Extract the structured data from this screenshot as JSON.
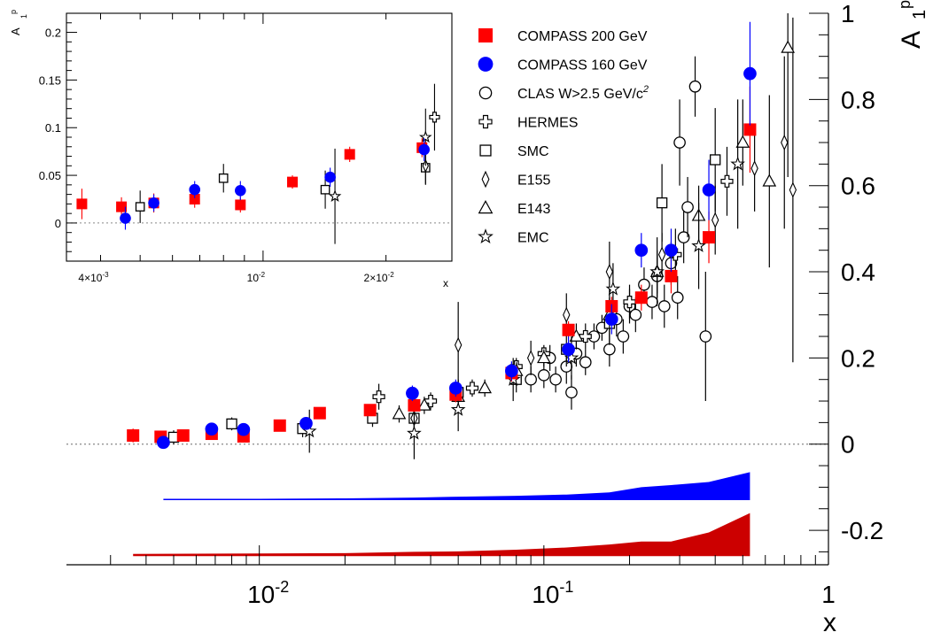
{
  "colors": {
    "compass200": "#ff0000",
    "compass160": "#0000ff",
    "band_compass160": "#0000ff",
    "band_compass200": "#cc0000",
    "other": "#000000",
    "zero_line": "#888888"
  },
  "chart_data": [
    {
      "type": "scatter",
      "scale": {
        "x": "log",
        "y": "linear"
      },
      "xlabel": "x",
      "ylabel": "A",
      "ylabel_sub": "1",
      "ylabel_sup": "p",
      "xlim": [
        0.0021,
        1.0
      ],
      "ylim": [
        -0.28,
        1.0
      ],
      "x_tick_labels": [
        {
          "value": 0.01,
          "base": "10",
          "exp": "-2"
        },
        {
          "value": 0.1,
          "base": "10",
          "exp": "-1"
        },
        {
          "value": 1,
          "base": "1",
          "exp": ""
        }
      ],
      "y_tick_labels": [
        "-0.2",
        "0",
        "0.2",
        "0.4",
        "0.6",
        "0.8",
        "1"
      ],
      "y_tick_values": [
        -0.2,
        0,
        0.2,
        0.4,
        0.6,
        0.8,
        1
      ],
      "zero_line": true,
      "legend": {
        "placement": "top-right",
        "entries": [
          {
            "series": "COMPASS 200 GeV",
            "label": "COMPASS 200 GeV",
            "symbol": "square-filled",
            "color": "#ff0000"
          },
          {
            "series": "COMPASS 160 GeV",
            "label": "COMPASS 160 GeV",
            "symbol": "circle-filled",
            "color": "#0000ff"
          },
          {
            "series": "CLAS W>2.5 GeV/c2",
            "label": "CLAS W>2.5 GeV/c",
            "label_sup": "2",
            "symbol": "circle-open",
            "color": "#000000"
          },
          {
            "series": "HERMES",
            "label": "HERMES",
            "symbol": "cross-open",
            "color": "#000000"
          },
          {
            "series": "SMC",
            "label": "SMC",
            "symbol": "square-open",
            "color": "#000000"
          },
          {
            "series": "E155",
            "label": "E155",
            "symbol": "diamond-open",
            "color": "#000000"
          },
          {
            "series": "E143",
            "label": "E143",
            "symbol": "triangle-open",
            "color": "#000000"
          },
          {
            "series": "EMC",
            "label": "EMC",
            "symbol": "star-open",
            "color": "#000000"
          }
        ]
      },
      "series": [
        {
          "name": "COMPASS 200 GeV",
          "points": [
            {
              "x": 0.0036,
              "y": 0.02,
              "err": 0.016
            },
            {
              "x": 0.0045,
              "y": 0.017,
              "err": 0.01
            },
            {
              "x": 0.0054,
              "y": 0.02,
              "err": 0.01
            },
            {
              "x": 0.0068,
              "y": 0.024,
              "err": 0.009
            },
            {
              "x": 0.0088,
              "y": 0.018,
              "err": 0.008
            },
            {
              "x": 0.0118,
              "y": 0.043,
              "err": 0.007
            },
            {
              "x": 0.0163,
              "y": 0.072,
              "err": 0.008
            },
            {
              "x": 0.0245,
              "y": 0.079,
              "err": 0.01
            },
            {
              "x": 0.035,
              "y": 0.09,
              "err": 0.015
            },
            {
              "x": 0.049,
              "y": 0.115,
              "err": 0.018
            },
            {
              "x": 0.077,
              "y": 0.165,
              "err": 0.02
            },
            {
              "x": 0.122,
              "y": 0.265,
              "err": 0.02
            },
            {
              "x": 0.173,
              "y": 0.32,
              "err": 0.022
            },
            {
              "x": 0.22,
              "y": 0.34,
              "err": 0.03
            },
            {
              "x": 0.28,
              "y": 0.39,
              "err": 0.04
            },
            {
              "x": 0.38,
              "y": 0.48,
              "err": 0.06
            },
            {
              "x": 0.53,
              "y": 0.73,
              "err": 0.1
            }
          ]
        },
        {
          "name": "COMPASS 160 GeV",
          "points": [
            {
              "x": 0.0046,
              "y": 0.004,
              "err": 0.012
            },
            {
              "x": 0.0068,
              "y": 0.035,
              "err": 0.009
            },
            {
              "x": 0.0088,
              "y": 0.034,
              "err": 0.01
            },
            {
              "x": 0.0146,
              "y": 0.048,
              "err": 0.01
            },
            {
              "x": 0.0345,
              "y": 0.118,
              "err": 0.018
            },
            {
              "x": 0.049,
              "y": 0.13,
              "err": 0.02
            },
            {
              "x": 0.077,
              "y": 0.17,
              "err": 0.022
            },
            {
              "x": 0.122,
              "y": 0.22,
              "err": 0.03
            },
            {
              "x": 0.173,
              "y": 0.29,
              "err": 0.035
            },
            {
              "x": 0.22,
              "y": 0.45,
              "err": 0.04
            },
            {
              "x": 0.28,
              "y": 0.45,
              "err": 0.05
            },
            {
              "x": 0.38,
              "y": 0.59,
              "err": 0.07
            },
            {
              "x": 0.53,
              "y": 0.86,
              "err": 0.12
            }
          ]
        },
        {
          "name": "CLAS W>2.5 GeV/c2",
          "points": [
            {
              "x": 0.09,
              "y": 0.15,
              "err": 0.03
            },
            {
              "x": 0.1,
              "y": 0.16,
              "err": 0.03
            },
            {
              "x": 0.105,
              "y": 0.2,
              "err": 0.03
            },
            {
              "x": 0.11,
              "y": 0.15,
              "err": 0.03
            },
            {
              "x": 0.12,
              "y": 0.18,
              "err": 0.04
            },
            {
              "x": 0.125,
              "y": 0.12,
              "err": 0.04
            },
            {
              "x": 0.13,
              "y": 0.21,
              "err": 0.03
            },
            {
              "x": 0.14,
              "y": 0.19,
              "err": 0.03
            },
            {
              "x": 0.15,
              "y": 0.25,
              "err": 0.03
            },
            {
              "x": 0.16,
              "y": 0.27,
              "err": 0.03
            },
            {
              "x": 0.17,
              "y": 0.22,
              "err": 0.04
            },
            {
              "x": 0.18,
              "y": 0.29,
              "err": 0.04
            },
            {
              "x": 0.19,
              "y": 0.25,
              "err": 0.04
            },
            {
              "x": 0.2,
              "y": 0.32,
              "err": 0.04
            },
            {
              "x": 0.21,
              "y": 0.3,
              "err": 0.04
            },
            {
              "x": 0.225,
              "y": 0.37,
              "err": 0.04
            },
            {
              "x": 0.24,
              "y": 0.33,
              "err": 0.04
            },
            {
              "x": 0.25,
              "y": 0.39,
              "err": 0.05
            },
            {
              "x": 0.265,
              "y": 0.32,
              "err": 0.05
            },
            {
              "x": 0.28,
              "y": 0.42,
              "err": 0.05
            },
            {
              "x": 0.295,
              "y": 0.34,
              "err": 0.05
            },
            {
              "x": 0.31,
              "y": 0.48,
              "err": 0.06
            },
            {
              "x": 0.32,
              "y": 0.55,
              "err": 0.07
            },
            {
              "x": 0.3,
              "y": 0.7,
              "err": 0.1
            },
            {
              "x": 0.34,
              "y": 0.83,
              "err": 0.07
            },
            {
              "x": 0.37,
              "y": 0.25,
              "err": 0.15
            }
          ]
        },
        {
          "name": "HERMES",
          "points": [
            {
              "x": 0.0263,
              "y": 0.11,
              "err": 0.03
            },
            {
              "x": 0.04,
              "y": 0.1,
              "err": 0.02
            },
            {
              "x": 0.056,
              "y": 0.13,
              "err": 0.02
            },
            {
              "x": 0.08,
              "y": 0.18,
              "err": 0.02
            },
            {
              "x": 0.1,
              "y": 0.21,
              "err": 0.02
            },
            {
              "x": 0.14,
              "y": 0.25,
              "err": 0.03
            },
            {
              "x": 0.2,
              "y": 0.33,
              "err": 0.04
            },
            {
              "x": 0.29,
              "y": 0.44,
              "err": 0.06
            },
            {
              "x": 0.44,
              "y": 0.61,
              "err": 0.08
            }
          ]
        },
        {
          "name": "SMC",
          "points": [
            {
              "x": 0.005,
              "y": 0.016,
              "err": 0.016
            },
            {
              "x": 0.008,
              "y": 0.047,
              "err": 0.015
            },
            {
              "x": 0.0142,
              "y": 0.036,
              "err": 0.02
            },
            {
              "x": 0.025,
              "y": 0.06,
              "err": 0.02
            },
            {
              "x": 0.035,
              "y": 0.06,
              "err": 0.03
            },
            {
              "x": 0.05,
              "y": 0.12,
              "err": 0.03
            },
            {
              "x": 0.08,
              "y": 0.15,
              "err": 0.03
            },
            {
              "x": 0.12,
              "y": 0.22,
              "err": 0.04
            },
            {
              "x": 0.17,
              "y": 0.28,
              "err": 0.05
            },
            {
              "x": 0.26,
              "y": 0.56,
              "err": 0.09
            },
            {
              "x": 0.4,
              "y": 0.66,
              "err": 0.12
            }
          ]
        },
        {
          "name": "E155",
          "points": [
            {
              "x": 0.035,
              "y": 0.06,
              "err": 0.02
            },
            {
              "x": 0.05,
              "y": 0.23,
              "err": 0.1
            },
            {
              "x": 0.09,
              "y": 0.2,
              "err": 0.04
            },
            {
              "x": 0.12,
              "y": 0.3,
              "err": 0.05
            },
            {
              "x": 0.17,
              "y": 0.4,
              "err": 0.07
            },
            {
              "x": 0.26,
              "y": 0.44,
              "err": 0.05
            },
            {
              "x": 0.4,
              "y": 0.52,
              "err": 0.08
            },
            {
              "x": 0.55,
              "y": 0.64,
              "err": 0.1
            },
            {
              "x": 0.7,
              "y": 0.7,
              "err": 0.2
            },
            {
              "x": 0.75,
              "y": 0.59,
              "err": 0.4
            }
          ]
        },
        {
          "name": "E143",
          "points": [
            {
              "x": 0.031,
              "y": 0.07,
              "err": 0.02
            },
            {
              "x": 0.038,
              "y": 0.09,
              "err": 0.02
            },
            {
              "x": 0.05,
              "y": 0.11,
              "err": 0.02
            },
            {
              "x": 0.062,
              "y": 0.13,
              "err": 0.02
            },
            {
              "x": 0.08,
              "y": 0.17,
              "err": 0.02
            },
            {
              "x": 0.1,
              "y": 0.2,
              "err": 0.02
            },
            {
              "x": 0.13,
              "y": 0.25,
              "err": 0.03
            },
            {
              "x": 0.17,
              "y": 0.3,
              "err": 0.04
            },
            {
              "x": 0.25,
              "y": 0.4,
              "err": 0.05
            },
            {
              "x": 0.35,
              "y": 0.53,
              "err": 0.07
            },
            {
              "x": 0.5,
              "y": 0.7,
              "err": 0.1
            },
            {
              "x": 0.62,
              "y": 0.61,
              "err": 0.2
            },
            {
              "x": 0.72,
              "y": 0.92,
              "err": 0.3
            }
          ]
        },
        {
          "name": "EMC",
          "points": [
            {
              "x": 0.015,
              "y": 0.03,
              "err": 0.05
            },
            {
              "x": 0.035,
              "y": 0.025,
              "err": 0.06
            },
            {
              "x": 0.05,
              "y": 0.08,
              "err": 0.05
            },
            {
              "x": 0.078,
              "y": 0.15,
              "err": 0.05
            },
            {
              "x": 0.125,
              "y": 0.2,
              "err": 0.05
            },
            {
              "x": 0.175,
              "y": 0.36,
              "err": 0.06
            },
            {
              "x": 0.25,
              "y": 0.4,
              "err": 0.08
            },
            {
              "x": 0.35,
              "y": 0.46,
              "err": 0.1
            },
            {
              "x": 0.48,
              "y": 0.65,
              "err": 0.15
            }
          ]
        }
      ],
      "systematic_bands": [
        {
          "series": "COMPASS 160 GeV",
          "color": "#0000ff",
          "baseline": -0.13,
          "x": [
            0.0046,
            0.01,
            0.02,
            0.035,
            0.05,
            0.08,
            0.12,
            0.17,
            0.22,
            0.28,
            0.38,
            0.53
          ],
          "upper": [
            -0.127,
            -0.127,
            -0.126,
            -0.124,
            -0.122,
            -0.12,
            -0.117,
            -0.112,
            -0.1,
            -0.095,
            -0.088,
            -0.065
          ]
        },
        {
          "series": "COMPASS 200 GeV",
          "color": "#cc0000",
          "baseline": -0.26,
          "x": [
            0.0036,
            0.01,
            0.02,
            0.035,
            0.05,
            0.08,
            0.12,
            0.17,
            0.22,
            0.28,
            0.38,
            0.53
          ],
          "upper": [
            -0.255,
            -0.254,
            -0.253,
            -0.25,
            -0.249,
            -0.245,
            -0.24,
            -0.233,
            -0.226,
            -0.226,
            -0.205,
            -0.16
          ]
        }
      ]
    },
    {
      "type": "scatter",
      "scale": {
        "x": "log",
        "y": "linear"
      },
      "placement": "inset-top-left",
      "xlabel": "x",
      "ylabel": "A",
      "ylabel_sub": "1",
      "ylabel_sup": "p",
      "xlim": [
        0.0033,
        0.029
      ],
      "ylim": [
        -0.04,
        0.22
      ],
      "x_tick_labels": [
        {
          "value": 0.004,
          "mant": "4×10",
          "exp": "-3"
        },
        {
          "value": 0.01,
          "mant": "10",
          "exp": "-2"
        },
        {
          "value": 0.02,
          "mant": "2×10",
          "exp": "-2"
        }
      ],
      "y_tick_labels": [
        "0",
        "0.05",
        "0.1",
        "0.15",
        "0.2"
      ],
      "y_tick_values": [
        0,
        0.05,
        0.1,
        0.15,
        0.2
      ],
      "zero_line": true,
      "series": [
        {
          "name": "COMPASS 200 GeV",
          "points": [
            {
              "x": 0.0036,
              "y": 0.02,
              "err": 0.016
            },
            {
              "x": 0.0045,
              "y": 0.017,
              "err": 0.01
            },
            {
              "x": 0.0054,
              "y": 0.021,
              "err": 0.01
            },
            {
              "x": 0.0068,
              "y": 0.025,
              "err": 0.009
            },
            {
              "x": 0.0088,
              "y": 0.019,
              "err": 0.008
            },
            {
              "x": 0.0118,
              "y": 0.043,
              "err": 0.007
            },
            {
              "x": 0.0163,
              "y": 0.072,
              "err": 0.008
            },
            {
              "x": 0.0245,
              "y": 0.079,
              "err": 0.01
            }
          ]
        },
        {
          "name": "COMPASS 160 GeV",
          "points": [
            {
              "x": 0.0046,
              "y": 0.005,
              "err": 0.012
            },
            {
              "x": 0.0054,
              "y": 0.021,
              "err": 0.009
            },
            {
              "x": 0.0068,
              "y": 0.035,
              "err": 0.009
            },
            {
              "x": 0.0088,
              "y": 0.034,
              "err": 0.01
            },
            {
              "x": 0.0146,
              "y": 0.048,
              "err": 0.01
            },
            {
              "x": 0.0248,
              "y": 0.077,
              "err": 0.012
            }
          ]
        },
        {
          "name": "SMC",
          "points": [
            {
              "x": 0.005,
              "y": 0.017,
              "err": 0.017
            },
            {
              "x": 0.008,
              "y": 0.047,
              "err": 0.015
            },
            {
              "x": 0.0142,
              "y": 0.035,
              "err": 0.02
            },
            {
              "x": 0.025,
              "y": 0.058,
              "err": 0.017
            }
          ]
        },
        {
          "name": "HERMES",
          "points": [
            {
              "x": 0.0263,
              "y": 0.111,
              "err": 0.035
            }
          ]
        },
        {
          "name": "E155",
          "points": [
            {
              "x": 0.025,
              "y": 0.06,
              "err": 0.02
            }
          ]
        },
        {
          "name": "EMC",
          "points": [
            {
              "x": 0.015,
              "y": 0.028,
              "err": 0.05
            },
            {
              "x": 0.025,
              "y": 0.09,
              "err": 0.03
            }
          ]
        }
      ]
    }
  ]
}
